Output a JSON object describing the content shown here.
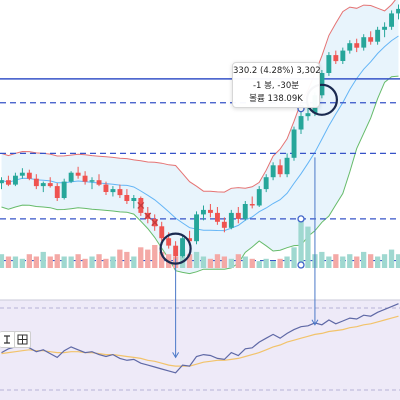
{
  "tooltip": {
    "line1": "330.2 (4.28%) 3,302",
    "line2": "-1 봉, -30분",
    "line3": "볼륨 138.09K"
  },
  "toolbar": {
    "item1_icon": "toolbar-icon",
    "item2_icon": "crosshair-icon"
  },
  "colors": {
    "up": "#26a69a",
    "down": "#ef5350",
    "volume_up": "#9fd8d0",
    "volume_down": "#f4a9a6",
    "upper_band": "#e57373",
    "mid_band": "#64b5f6",
    "lower_band": "#66bb6a",
    "level_line": "#3653c8",
    "indicator_line": "#5f69a6",
    "indicator_signal": "#f2c36b",
    "indicator_bg": "#eeeaf8",
    "marker": "#1a2a50"
  },
  "chart_data": {
    "type": "candlestick",
    "price": {
      "candles": [
        [
          242,
          246,
          238,
          244
        ],
        [
          244,
          247,
          240,
          241
        ],
        [
          241,
          249,
          240,
          247
        ],
        [
          247,
          252,
          245,
          249
        ],
        [
          249,
          251,
          244,
          245
        ],
        [
          245,
          248,
          238,
          240
        ],
        [
          240,
          243,
          236,
          242
        ],
        [
          242,
          246,
          239,
          240
        ],
        [
          240,
          242,
          230,
          232
        ],
        [
          232,
          245,
          231,
          243
        ],
        [
          243,
          250,
          242,
          249
        ],
        [
          249,
          253,
          245,
          247
        ],
        [
          247,
          250,
          241,
          243
        ],
        [
          243,
          246,
          238,
          244
        ],
        [
          244,
          248,
          240,
          241
        ],
        [
          241,
          243,
          234,
          236
        ],
        [
          236,
          240,
          233,
          238
        ],
        [
          238,
          241,
          232,
          234
        ],
        [
          234,
          238,
          228,
          230
        ],
        [
          230,
          234,
          225,
          232
        ],
        [
          232,
          233,
          220,
          222
        ],
        [
          222,
          226,
          215,
          218
        ],
        [
          218,
          221,
          210,
          213
        ],
        [
          213,
          216,
          202,
          205
        ],
        [
          205,
          209,
          198,
          200
        ],
        [
          200,
          203,
          190,
          193
        ],
        [
          193,
          207,
          192,
          205
        ],
        [
          205,
          210,
          200,
          203
        ],
        [
          203,
          223,
          201,
          221
        ],
        [
          221,
          227,
          217,
          224
        ],
        [
          224,
          228,
          219,
          222
        ],
        [
          222,
          226,
          214,
          216
        ],
        [
          216,
          219,
          209,
          212
        ],
        [
          212,
          224,
          211,
          222
        ],
        [
          222,
          226,
          215,
          218
        ],
        [
          218,
          230,
          217,
          228
        ],
        [
          228,
          233,
          225,
          227
        ],
        [
          227,
          240,
          226,
          238
        ],
        [
          238,
          248,
          236,
          246
        ],
        [
          246,
          256,
          244,
          254
        ],
        [
          254,
          258,
          246,
          248
        ],
        [
          248,
          262,
          246,
          259
        ],
        [
          259,
          280,
          257,
          278
        ],
        [
          278,
          290,
          275,
          287
        ],
        [
          287,
          296,
          284,
          289
        ],
        [
          289,
          303,
          287,
          301
        ],
        [
          301,
          318,
          299,
          316
        ],
        [
          316,
          330,
          314,
          328
        ],
        [
          328,
          331,
          322,
          324
        ],
        [
          324,
          333,
          322,
          331
        ],
        [
          331,
          338,
          329,
          336
        ],
        [
          336,
          339,
          330,
          333
        ],
        [
          333,
          342,
          331,
          340
        ],
        [
          340,
          344,
          335,
          337
        ],
        [
          337,
          347,
          335,
          345
        ],
        [
          345,
          350,
          340,
          347
        ],
        [
          347,
          358,
          345,
          356
        ],
        [
          356,
          362,
          352,
          359
        ]
      ],
      "volume": [
        6,
        5,
        5,
        4,
        6,
        5,
        7,
        5,
        6,
        5,
        5,
        6,
        4,
        5,
        6,
        4,
        5,
        8,
        7,
        5,
        9,
        8,
        10,
        7,
        6,
        5,
        8,
        6,
        7,
        5,
        4,
        6,
        5,
        4,
        6,
        5,
        4,
        3,
        4,
        3,
        4,
        5,
        9,
        22,
        18,
        6,
        7,
        5,
        6,
        5,
        6,
        5,
        7,
        6,
        5,
        6,
        8,
        6
      ],
      "level_line": 312,
      "dashed_levels": [
        296,
        262,
        218,
        190
      ],
      "crossing_marks": [
        20,
        21,
        22
      ],
      "circles": [
        [
          25,
          198
        ],
        [
          46,
          298
        ]
      ],
      "small_markers": [
        [
          43,
          292
        ],
        [
          43,
          218
        ],
        [
          43,
          187
        ]
      ],
      "arrows": [
        [
          25,
          198,
          25,
          34
        ],
        [
          45,
          266,
          45,
          68
        ]
      ]
    },
    "indicator": {
      "values": [
        41,
        45,
        47,
        50,
        46,
        42,
        44,
        40,
        36,
        43,
        47,
        44,
        41,
        42,
        39,
        37,
        39,
        35,
        33,
        34,
        30,
        28,
        26,
        24,
        22,
        20,
        28,
        27,
        37,
        39,
        38,
        35,
        34,
        41,
        38,
        45,
        46,
        52,
        56,
        60,
        56,
        61,
        65,
        68,
        69,
        72,
        70,
        75,
        71,
        74,
        77,
        76,
        80,
        79,
        83,
        86,
        89,
        92
      ],
      "signal": [
        40,
        41,
        42,
        43,
        44,
        43,
        43,
        42,
        41,
        41,
        42,
        42,
        41,
        41,
        40,
        39,
        39,
        38,
        37,
        36,
        35,
        33,
        32,
        30,
        28,
        27,
        27,
        27,
        29,
        31,
        32,
        33,
        33,
        34,
        35,
        37,
        39,
        41,
        44,
        47,
        49,
        52,
        54,
        56,
        58,
        60,
        61,
        63,
        64,
        65,
        67,
        68,
        70,
        71,
        73,
        75,
        77,
        79
      ],
      "range": [
        0,
        100
      ]
    },
    "ylim": [
      185,
      365
    ]
  }
}
